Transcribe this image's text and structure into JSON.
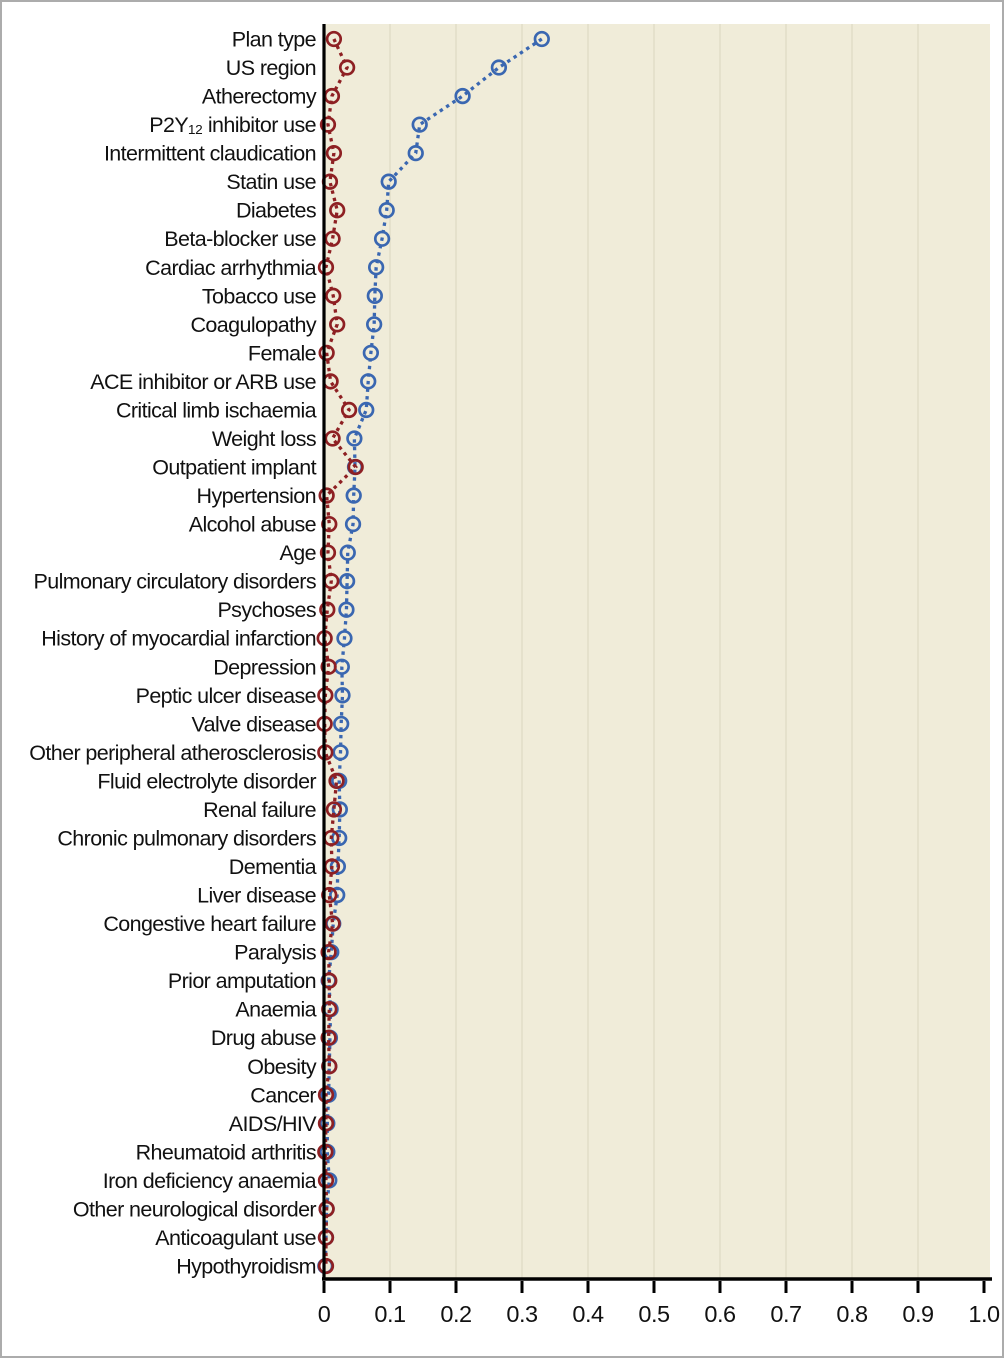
{
  "figure": {
    "background_color": "#ffffff",
    "plot_background_color": "#f0ecd9",
    "gridline_color": "#e5e1cc",
    "axis_color": "#000000",
    "border_color": "#acacac"
  },
  "chart_data": {
    "type": "line",
    "title": "",
    "xlabel": "",
    "ylabel": "",
    "orientation": "horizontal categories, values on x-axis",
    "xlim": [
      0,
      1.0
    ],
    "x_ticks": [
      0,
      0.1,
      0.2,
      0.3,
      0.4,
      0.5,
      0.6,
      0.7,
      0.8,
      0.9,
      1.0
    ],
    "x_tick_labels": [
      "0",
      "0.1",
      "0.2",
      "0.3",
      "0.4",
      "0.5",
      "0.6",
      "0.7",
      "0.8",
      "0.9",
      "1.0"
    ],
    "grid": "faint vertical gridlines at each 0.1",
    "legend": "none",
    "categories": [
      "Plan type",
      "US region",
      "Atherectomy",
      "P2Y₁₂ inhibitor use",
      "Intermittent claudication",
      "Statin use",
      "Diabetes",
      "Beta-blocker use",
      "Cardiac arrhythmia",
      "Tobacco use",
      "Coagulopathy",
      "Female",
      "ACE inhibitor or ARB use",
      "Critical limb ischaemia",
      "Weight loss",
      "Outpatient implant",
      "Hypertension",
      "Alcohol abuse",
      "Age",
      "Pulmonary circulatory disorders",
      "Psychoses",
      "History of myocardial infarction",
      "Depression",
      "Peptic ulcer disease",
      "Valve disease",
      "Other peripheral atherosclerosis",
      "Fluid electrolyte disorder",
      "Renal failure",
      "Chronic pulmonary disorders",
      "Dementia",
      "Liver disease",
      "Congestive heart failure",
      "Paralysis",
      "Prior amputation",
      "Anaemia",
      "Drug abuse",
      "Obesity",
      "Cancer",
      "AIDS/HIV",
      "Rheumatoid arthritis",
      "Iron deficiency anaemia",
      "Other neurological disorder",
      "Anticoagulant use",
      "Hypothyroidism"
    ],
    "series": [
      {
        "id": "series-blue",
        "color": "#3a67b1",
        "line_style": "dotted",
        "marker": "open-circle",
        "values": [
          0.33,
          0.265,
          0.21,
          0.145,
          0.139,
          0.098,
          0.095,
          0.088,
          0.079,
          0.077,
          0.076,
          0.071,
          0.067,
          0.064,
          0.046,
          0.047,
          0.045,
          0.044,
          0.036,
          0.035,
          0.034,
          0.031,
          0.027,
          0.028,
          0.026,
          0.025,
          0.023,
          0.024,
          0.023,
          0.021,
          0.02,
          0.014,
          0.011,
          0.007,
          0.01,
          0.009,
          0.008,
          0.007,
          0.005,
          0.005,
          0.008,
          0.004,
          0.003,
          0.002
        ]
      },
      {
        "id": "series-red",
        "color": "#8e2023",
        "line_style": "dotted",
        "marker": "open-circle",
        "values": [
          0.015,
          0.035,
          0.012,
          0.006,
          0.015,
          0.009,
          0.02,
          0.013,
          0.003,
          0.014,
          0.02,
          0.004,
          0.01,
          0.038,
          0.013,
          0.048,
          0.004,
          0.008,
          0.006,
          0.011,
          0.005,
          0.001,
          0.007,
          0.002,
          0.001,
          0.002,
          0.019,
          0.015,
          0.011,
          0.012,
          0.008,
          0.013,
          0.007,
          0.008,
          0.008,
          0.007,
          0.008,
          0.003,
          0.003,
          0.002,
          0.003,
          0.004,
          0.003,
          0.003
        ]
      }
    ]
  }
}
